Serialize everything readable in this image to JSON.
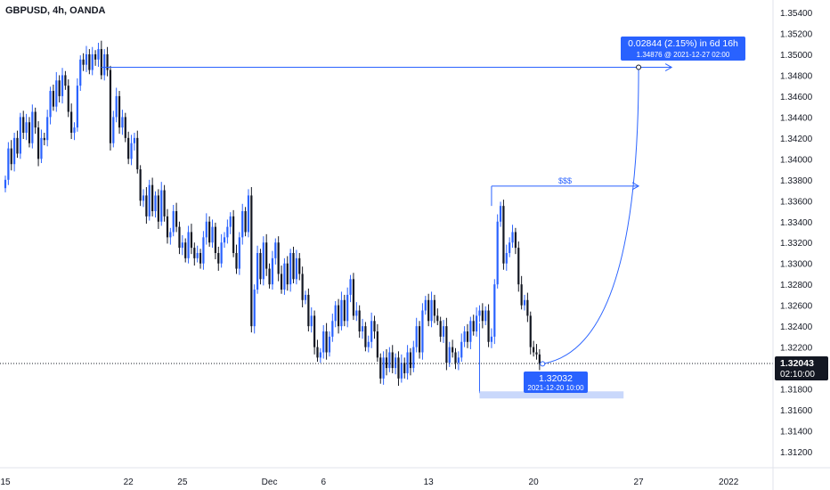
{
  "header": {
    "symbol_label": "GBPUSD, 4h, OANDA"
  },
  "colors": {
    "up": "#2962ff",
    "down": "#131722",
    "wick": "#131722",
    "accent": "#2962ff",
    "axis_text": "#131722",
    "price_tag_bg": "#131722",
    "zone": "#c9d8fb"
  },
  "chart_data": {
    "type": "candlestick",
    "title": "GBPUSD, 4h, OANDA",
    "timeframe": "4h",
    "x_axis": {
      "ticks": [
        {
          "label": "15",
          "index": 0
        },
        {
          "label": "22",
          "index": 41
        },
        {
          "label": "25",
          "index": 59
        },
        {
          "label": "Dec",
          "index": 88
        },
        {
          "label": "6",
          "index": 106
        },
        {
          "label": "13",
          "index": 141
        },
        {
          "label": "20",
          "index": 176
        },
        {
          "label": "27",
          "index": 211
        },
        {
          "label": "2022",
          "index": 241
        }
      ]
    },
    "y_axis": {
      "ylim": [
        1.31,
        1.356
      ],
      "ticks": [
        "1.35400",
        "1.35200",
        "1.35000",
        "1.34800",
        "1.34600",
        "1.34400",
        "1.34200",
        "1.34000",
        "1.33800",
        "1.33600",
        "1.33400",
        "1.33200",
        "1.33000",
        "1.32800",
        "1.32600",
        "1.32400",
        "1.32200",
        "1.32000",
        "1.31800",
        "1.31600",
        "1.31400",
        "1.31200"
      ]
    },
    "current_price": {
      "value": "1.32043",
      "countdown": "02:10:00"
    },
    "candles_close": [
      1.338,
      1.341,
      1.3395,
      1.342,
      1.3405,
      1.344,
      1.3425,
      1.3435,
      1.3415,
      1.3445,
      1.343,
      1.34,
      1.342,
      1.3418,
      1.344,
      1.3465,
      1.345,
      1.3475,
      1.346,
      1.348,
      1.347,
      1.3445,
      1.3425,
      1.343,
      1.347,
      1.3495,
      1.349,
      1.35,
      1.3485,
      1.35,
      1.3495,
      1.3505,
      1.348,
      1.35,
      1.3485,
      1.3415,
      1.344,
      1.346,
      1.343,
      1.344,
      1.342,
      1.34,
      1.3415,
      1.342,
      1.339,
      1.336,
      1.3365,
      1.3345,
      1.3375,
      1.335,
      1.3365,
      1.334,
      1.337,
      1.3345,
      1.3325,
      1.333,
      1.335,
      1.3335,
      1.3315,
      1.332,
      1.3305,
      1.333,
      1.3315,
      1.3305,
      1.331,
      1.33,
      1.3325,
      1.334,
      1.332,
      1.3335,
      1.331,
      1.33,
      1.332,
      1.3325,
      1.3335,
      1.3345,
      1.331,
      1.3295,
      1.3325,
      1.335,
      1.333,
      1.3365,
      1.324,
      1.3275,
      1.331,
      1.3285,
      1.332,
      1.3295,
      1.328,
      1.3305,
      1.332,
      1.329,
      1.3275,
      1.33,
      1.328,
      1.331,
      1.3285,
      1.3305,
      1.329,
      1.3265,
      1.327,
      1.324,
      1.325,
      1.322,
      1.321,
      1.3215,
      1.3235,
      1.3215,
      1.323,
      1.3245,
      1.326,
      1.324,
      1.3265,
      1.3245,
      1.327,
      1.3285,
      1.325,
      1.3255,
      1.3235,
      1.324,
      1.322,
      1.3225,
      1.3245,
      1.3235,
      1.321,
      1.319,
      1.321,
      1.32,
      1.3215,
      1.32,
      1.321,
      1.319,
      1.3205,
      1.3195,
      1.3215,
      1.32,
      1.322,
      1.324,
      1.3215,
      1.3255,
      1.3265,
      1.3245,
      1.3265,
      1.325,
      1.3245,
      1.323,
      1.324,
      1.3205,
      1.322,
      1.3215,
      1.3205,
      1.321,
      1.3225,
      1.3235,
      1.3225,
      1.3245,
      1.3235,
      1.325,
      1.3255,
      1.3245,
      1.3255,
      1.3225,
      1.323,
      1.328,
      1.334,
      1.3355,
      1.33,
      1.331,
      1.332,
      1.333,
      1.3315,
      1.328,
      1.326,
      1.3265,
      1.325,
      1.322,
      1.3215,
      1.3213,
      1.3204
    ],
    "annotations": {
      "measure_label": "0.02844 (2.15%) in 6d 16h",
      "measure_sub": "1.34876 @ 2021-12-27  02:00",
      "target_price": 1.34876,
      "target_index": 211,
      "low_label": "1.32032",
      "low_sub": "2021-12-20 10:00",
      "low_price": 1.32032,
      "low_index": 179,
      "mid_label": "$$$",
      "mid_price": 1.3374,
      "mid_start_index": 162,
      "mid_end_index": 211,
      "zone": {
        "from_index": 158,
        "to_index": 206,
        "low": 1.317,
        "high": 1.3176
      },
      "start_index": 158,
      "top_line_start_index": 32,
      "top_line_end_index": 222
    },
    "legend": "none",
    "grid": false
  }
}
